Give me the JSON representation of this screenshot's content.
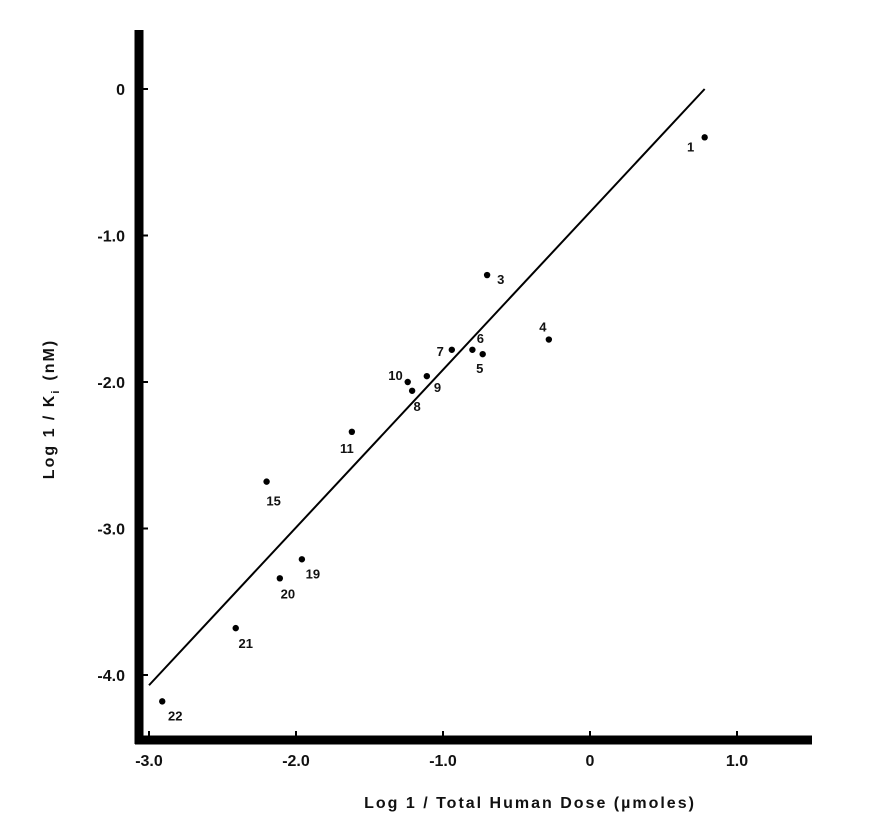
{
  "chart_data": {
    "type": "scatter",
    "title": "",
    "xlabel": "Log  1 / Total Human Dose  (µmoles)",
    "ylabel": "Log  1 / K",
    "ylabel_subscript": "i",
    "ylabel_unit": "(nM)",
    "xlim": [
      -3.0,
      1.5
    ],
    "ylim": [
      -4.4,
      0.4
    ],
    "x_ticks": [
      {
        "value": -3.0,
        "label": "-3.0"
      },
      {
        "value": -2.0,
        "label": "-2.0"
      },
      {
        "value": -1.0,
        "label": "-1.0"
      },
      {
        "value": 0,
        "label": "0"
      },
      {
        "value": 1.0,
        "label": "1.0"
      }
    ],
    "y_ticks": [
      {
        "value": 0,
        "label": "0"
      },
      {
        "value": -1.0,
        "label": "-1.0"
      },
      {
        "value": -2.0,
        "label": "-2.0"
      },
      {
        "value": -3.0,
        "label": "-3.0"
      },
      {
        "value": -4.0,
        "label": "-4.0"
      }
    ],
    "grid": false,
    "legend": "none",
    "points": [
      {
        "label": "1",
        "x": 0.78,
        "y": -0.33
      },
      {
        "label": "3",
        "x": -0.7,
        "y": -1.27
      },
      {
        "label": "4",
        "x": -0.28,
        "y": -1.71
      },
      {
        "label": "5",
        "x": -0.73,
        "y": -1.81
      },
      {
        "label": "6",
        "x": -0.8,
        "y": -1.78
      },
      {
        "label": "7",
        "x": -0.94,
        "y": -1.78
      },
      {
        "label": "8",
        "x": -1.21,
        "y": -2.06
      },
      {
        "label": "9",
        "x": -1.11,
        "y": -1.96
      },
      {
        "label": "10",
        "x": -1.24,
        "y": -2.0
      },
      {
        "label": "11",
        "x": -1.62,
        "y": -2.34
      },
      {
        "label": "15",
        "x": -2.2,
        "y": -2.68
      },
      {
        "label": "19",
        "x": -1.96,
        "y": -3.21
      },
      {
        "label": "20",
        "x": -2.11,
        "y": -3.34
      },
      {
        "label": "21",
        "x": -2.41,
        "y": -3.68
      },
      {
        "label": "22",
        "x": -2.91,
        "y": -4.18
      }
    ],
    "regression_line": {
      "x": [
        -3.0,
        0.78
      ],
      "y": [
        -4.07,
        0.0
      ]
    }
  }
}
